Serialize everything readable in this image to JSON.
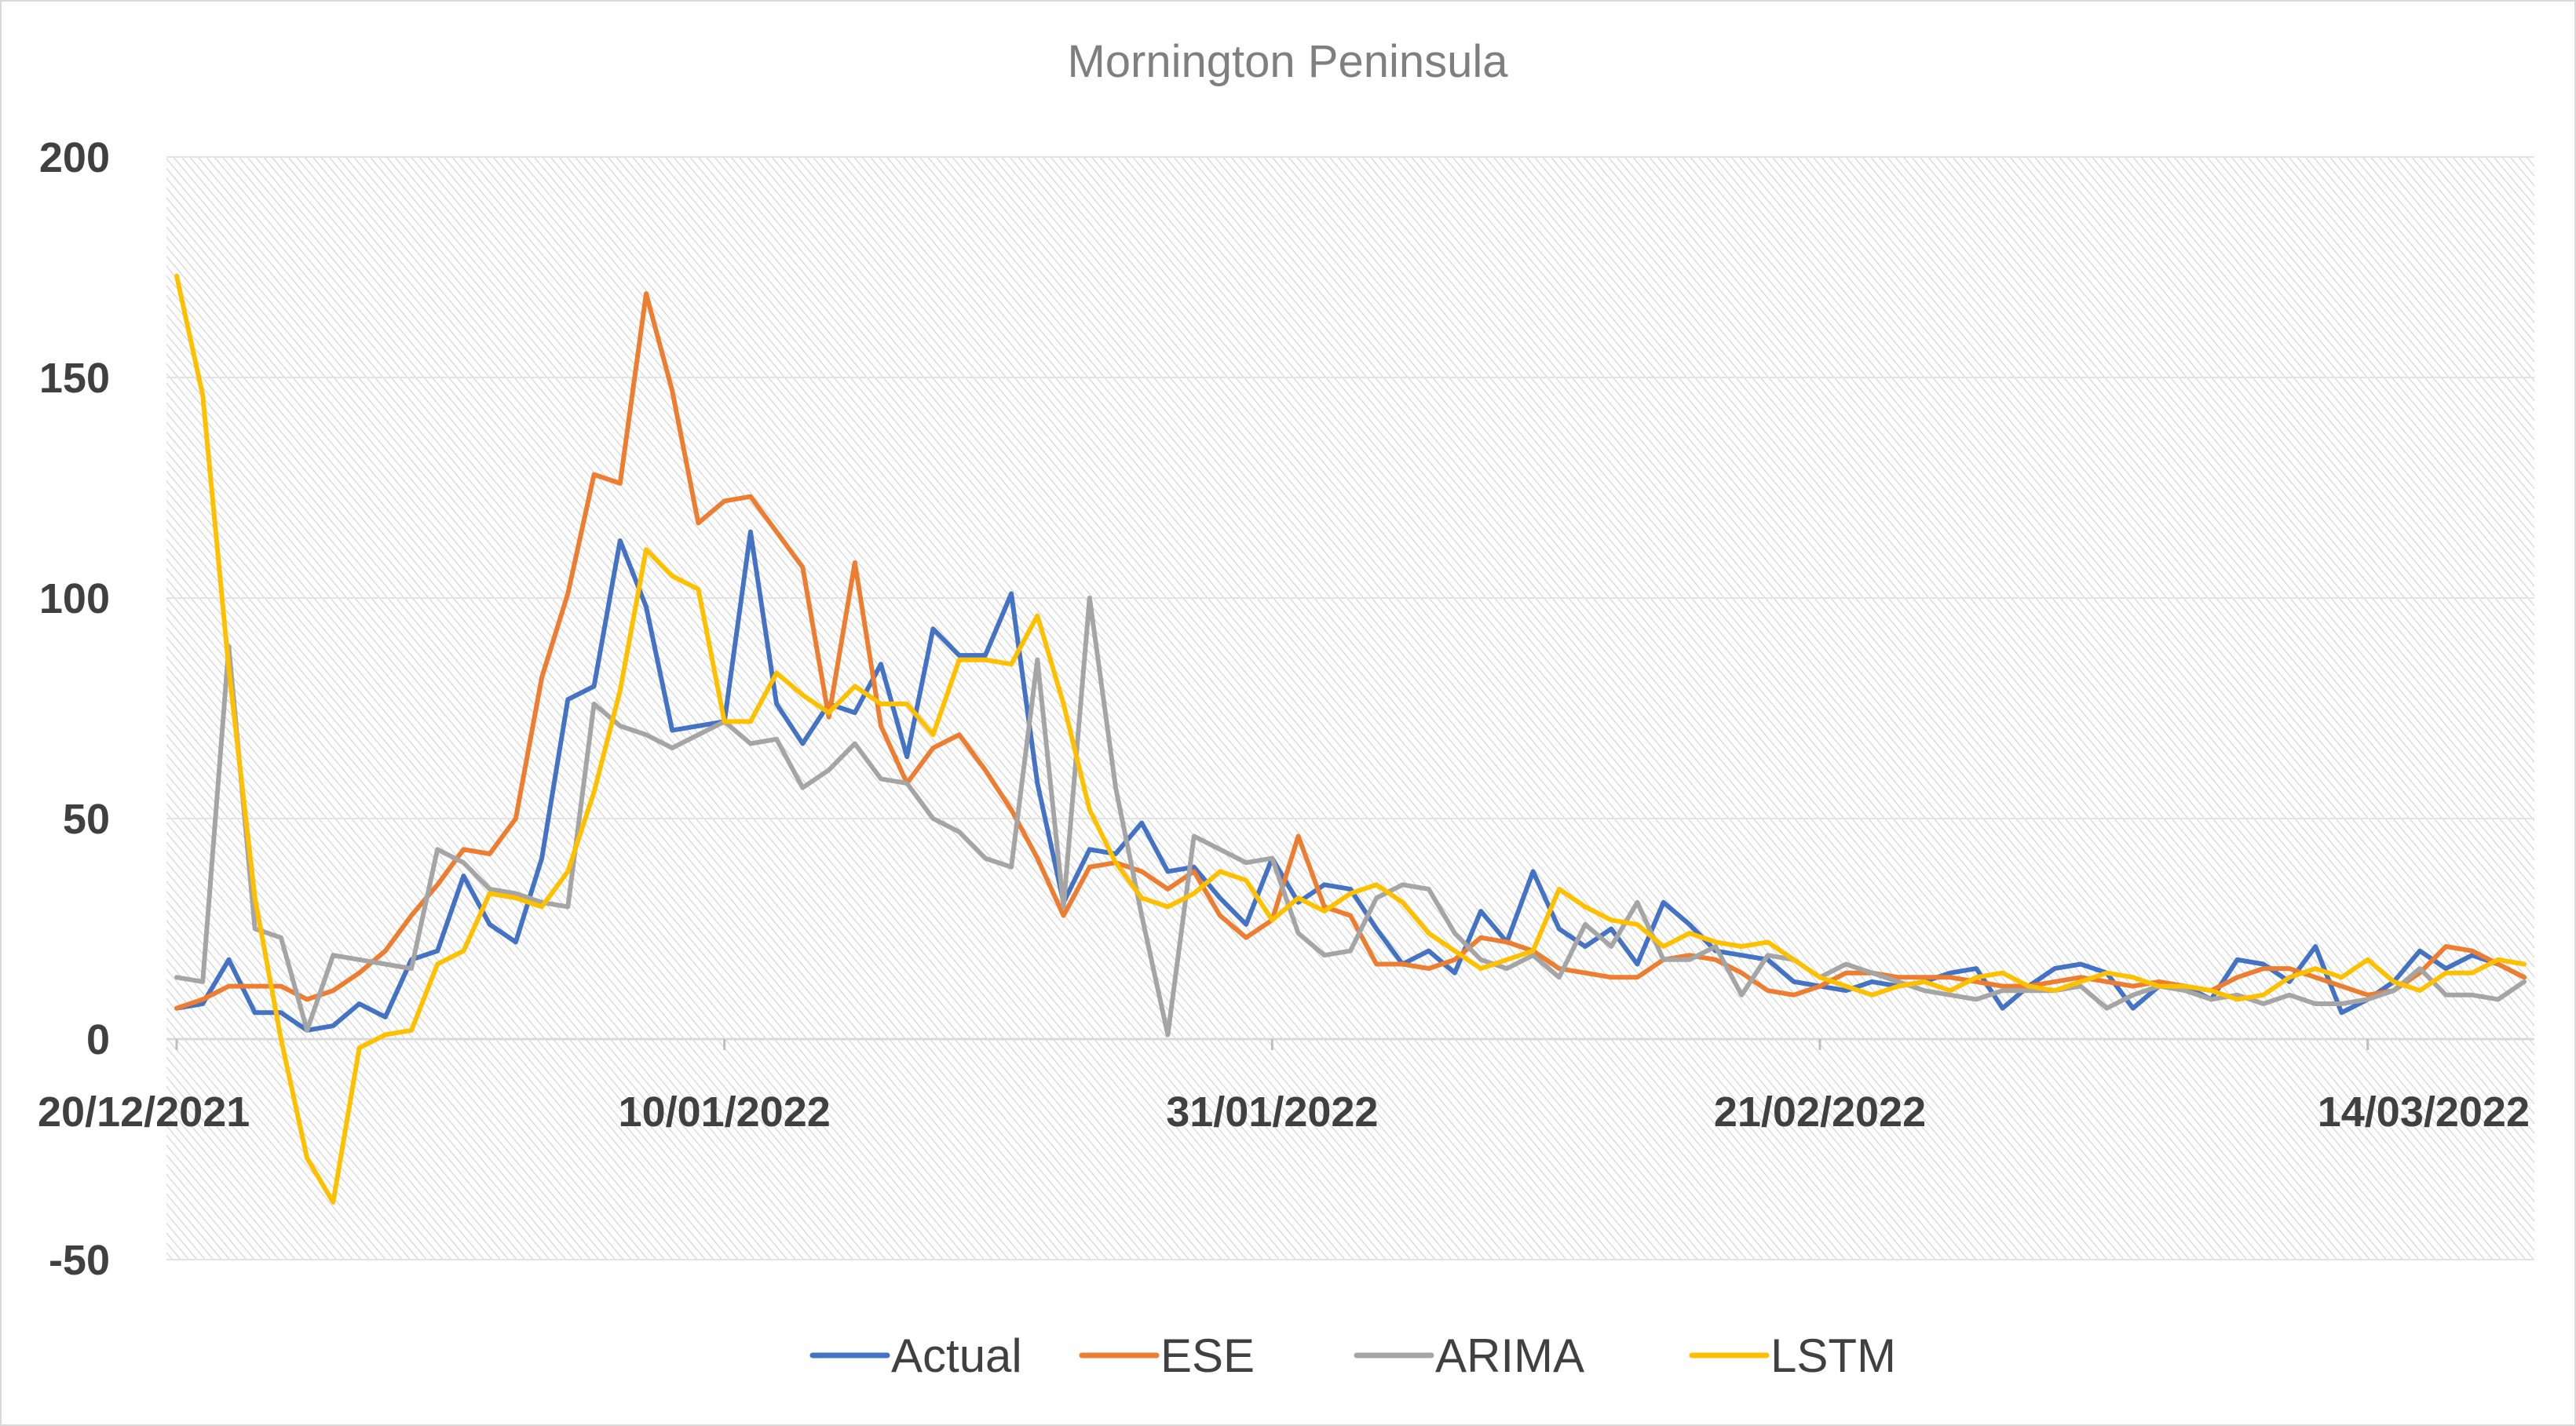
{
  "chart_data": {
    "type": "line",
    "title": "Mornington Peninsula",
    "xlabel": "",
    "ylabel": "",
    "ylim": [
      -50,
      200
    ],
    "yticks": [
      -50,
      0,
      50,
      100,
      150,
      200
    ],
    "x_start": "20/12/2021",
    "xtick_labels": [
      "20/12/2021",
      "10/01/2022",
      "31/01/2022",
      "21/02/2022",
      "14/03/2022"
    ],
    "xtick_step_days": 21,
    "grid": true,
    "legend_position": "bottom",
    "series": [
      {
        "name": "Actual",
        "color": "#4472C4",
        "values": [
          7,
          8,
          18,
          6,
          6,
          2,
          3,
          8,
          5,
          18,
          20,
          37,
          26,
          22,
          41,
          77,
          80,
          113,
          98,
          70,
          71,
          72,
          115,
          76,
          67,
          76,
          74,
          85,
          64,
          93,
          87,
          87,
          101,
          58,
          31,
          43,
          42,
          49,
          38,
          39,
          32,
          26,
          41,
          31,
          35,
          34,
          25,
          17,
          20,
          15,
          29,
          22,
          38,
          25,
          21,
          25,
          17,
          31,
          26,
          20,
          19,
          18,
          13,
          12,
          11,
          13,
          12,
          13,
          15,
          16,
          7,
          12,
          16,
          17,
          15,
          7,
          12,
          12,
          9,
          18,
          17,
          13,
          21,
          6,
          9,
          13,
          20,
          16,
          19,
          17,
          14
        ]
      },
      {
        "name": "ESE",
        "color": "#ED7D31",
        "values": [
          7,
          9,
          12,
          12,
          12,
          9,
          11,
          15,
          20,
          28,
          35,
          43,
          42,
          50,
          82,
          101,
          128,
          126,
          169,
          147,
          117,
          122,
          123,
          115,
          107,
          73,
          108,
          71,
          58,
          66,
          69,
          61,
          52,
          41,
          28,
          39,
          40,
          38,
          34,
          38,
          28,
          23,
          27,
          46,
          30,
          28,
          17,
          17,
          16,
          18,
          23,
          22,
          20,
          16,
          15,
          14,
          14,
          18,
          19,
          18,
          15,
          11,
          10,
          12,
          15,
          15,
          14,
          14,
          14,
          13,
          12,
          12,
          13,
          14,
          13,
          12,
          13,
          12,
          11,
          14,
          16,
          16,
          14,
          12,
          10,
          11,
          15,
          21,
          20,
          17,
          14
        ]
      },
      {
        "name": "ARIMA",
        "color": "#A5A5A5",
        "values": [
          14,
          13,
          89,
          25,
          23,
          2,
          19,
          18,
          17,
          16,
          43,
          40,
          34,
          33,
          31,
          30,
          76,
          71,
          69,
          66,
          69,
          72,
          67,
          68,
          57,
          61,
          67,
          59,
          58,
          50,
          47,
          41,
          39,
          86,
          30,
          100,
          57,
          28,
          1,
          46,
          43,
          40,
          41,
          24,
          19,
          20,
          32,
          35,
          34,
          24,
          18,
          16,
          19,
          14,
          26,
          21,
          31,
          18,
          18,
          21,
          10,
          19,
          18,
          14,
          17,
          15,
          13,
          11,
          10,
          9,
          11,
          11,
          11,
          12,
          7,
          10,
          12,
          11,
          9,
          10,
          8,
          10,
          8,
          8,
          9,
          11,
          16,
          10,
          10,
          9,
          13
        ]
      },
      {
        "name": "LSTM",
        "color": "#FFC000",
        "values": [
          173,
          146,
          84,
          32,
          0,
          -27,
          -37,
          -2,
          1,
          2,
          17,
          20,
          33,
          32,
          30,
          38,
          56,
          79,
          111,
          105,
          102,
          72,
          72,
          83,
          78,
          74,
          80,
          76,
          76,
          69,
          86,
          86,
          85,
          96,
          76,
          52,
          40,
          32,
          30,
          33,
          38,
          36,
          27,
          32,
          29,
          33,
          35,
          31,
          24,
          20,
          16,
          18,
          20,
          34,
          30,
          27,
          26,
          21,
          24,
          22,
          21,
          22,
          18,
          14,
          12,
          10,
          12,
          13,
          11,
          14,
          15,
          12,
          11,
          13,
          15,
          14,
          12,
          12,
          11,
          9,
          10,
          14,
          16,
          14,
          18,
          13,
          11,
          15,
          15,
          18,
          17
        ]
      }
    ]
  }
}
